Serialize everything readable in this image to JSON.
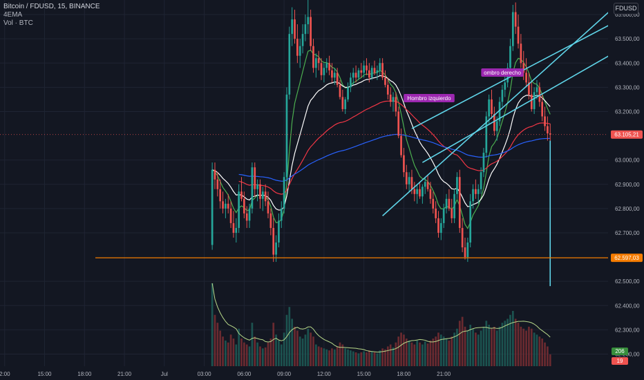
{
  "header": {
    "symbol_line": "Bitcoin / FDUSD, 15, BINANCE",
    "indicator_ema": "4EMA",
    "indicator_vol": "Vol · BTC"
  },
  "currency_badge": "FDUSD",
  "price_axis": {
    "ticks": [
      "63.600,00",
      "63.500,00",
      "63.400,00",
      "63.300,00",
      "63.200,00",
      "63.000,00",
      "62.900,00",
      "62.800,00",
      "62.700,00",
      "62.500,00",
      "62.400,00",
      "62.300,00",
      "62.200,00"
    ],
    "tick_values": [
      63600,
      63500,
      63400,
      63300,
      63200,
      63000,
      62900,
      62800,
      62700,
      62500,
      62400,
      62300,
      62200
    ],
    "last_price_label": "63.105,21",
    "last_price_value": 63105.21,
    "level_label": "62.597,03",
    "level_value": 62597.03,
    "vol_badge_1": "206",
    "vol_badge_2": "19"
  },
  "time_axis": {
    "labels": [
      "2:00",
      "15:00",
      "18:00",
      "21:00",
      "Jul",
      "03:00",
      "06:00",
      "09:00",
      "12:00",
      "15:00",
      "18:00",
      "21:00"
    ]
  },
  "annotations": {
    "left_shoulder": "Hombro izquierdo",
    "right_shoulder": "ombro derecho"
  },
  "colors": {
    "background": "#131722",
    "up": "#26a69a",
    "down": "#ef5350",
    "ema_fast": "#4caf50",
    "ema_mid": "#ffffff",
    "ema_slow": "#f23645",
    "ema_long": "#2962ff",
    "channel": "#5fd4e8",
    "level": "#f57c00",
    "annotation": "#9c27b0",
    "vol_ma": "#b8d98a"
  },
  "chart_data": {
    "type": "candlestick",
    "y_range": [
      62150,
      63660
    ],
    "x_range_hours": [
      -0.35,
      45.35
    ],
    "ohlc": [
      [
        15.6,
        62650,
        62990,
        62630,
        62960
      ],
      [
        15.8,
        62960,
        62990,
        62880,
        62920
      ],
      [
        16.0,
        62920,
        62950,
        62850,
        62880
      ],
      [
        16.2,
        62880,
        62920,
        62800,
        62830
      ],
      [
        16.4,
        62830,
        62870,
        62780,
        62800
      ],
      [
        16.6,
        62800,
        62840,
        62760,
        62820
      ],
      [
        16.8,
        62820,
        62860,
        62780,
        62800
      ],
      [
        17.0,
        62800,
        62830,
        62720,
        62740
      ],
      [
        17.2,
        62740,
        62790,
        62680,
        62700
      ],
      [
        17.4,
        62700,
        62760,
        62660,
        62720
      ],
      [
        17.6,
        62720,
        62900,
        62700,
        62870
      ],
      [
        17.8,
        62870,
        62930,
        62830,
        62840
      ],
      [
        18.0,
        62840,
        62870,
        62760,
        62780
      ],
      [
        18.2,
        62780,
        62810,
        62720,
        62750
      ],
      [
        18.4,
        62750,
        62820,
        62720,
        62800
      ],
      [
        18.6,
        62800,
        62990,
        62780,
        62970
      ],
      [
        18.8,
        62970,
        62990,
        62850,
        62880
      ],
      [
        19.0,
        62880,
        62920,
        62830,
        62900
      ],
      [
        19.2,
        62900,
        62920,
        62800,
        62840
      ],
      [
        19.4,
        62840,
        62890,
        62790,
        62870
      ],
      [
        19.6,
        62870,
        62900,
        62810,
        62830
      ],
      [
        19.8,
        62830,
        62870,
        62760,
        62780
      ],
      [
        20.0,
        62780,
        62800,
        62690,
        62720
      ],
      [
        20.2,
        62720,
        62760,
        62580,
        62610
      ],
      [
        20.4,
        62610,
        62690,
        62580,
        62660
      ],
      [
        20.6,
        62660,
        62780,
        62640,
        62750
      ],
      [
        20.8,
        62750,
        62830,
        62720,
        62800
      ],
      [
        21.0,
        62800,
        62950,
        62780,
        62930
      ],
      [
        21.2,
        62930,
        63300,
        62910,
        63270
      ],
      [
        21.4,
        63270,
        63550,
        63250,
        63520
      ],
      [
        21.6,
        63520,
        63630,
        63470,
        63580
      ],
      [
        21.8,
        63580,
        63620,
        63480,
        63500
      ],
      [
        22.0,
        63500,
        63560,
        63400,
        63430
      ],
      [
        22.2,
        63430,
        63500,
        63380,
        63470
      ],
      [
        22.4,
        63470,
        63560,
        63440,
        63520
      ],
      [
        22.6,
        63520,
        63600,
        63490,
        63560
      ],
      [
        22.8,
        63560,
        63660,
        63520,
        63590
      ],
      [
        23.0,
        63590,
        63620,
        63450,
        63470
      ],
      [
        23.2,
        63470,
        63500,
        63360,
        63380
      ],
      [
        23.4,
        63380,
        63440,
        63340,
        63420
      ],
      [
        23.6,
        63420,
        63450,
        63370,
        63400
      ],
      [
        23.8,
        63400,
        63420,
        63330,
        63350
      ],
      [
        24.0,
        63350,
        63400,
        63320,
        63380
      ],
      [
        24.2,
        63380,
        63420,
        63360,
        63400
      ],
      [
        24.4,
        63400,
        63430,
        63350,
        63370
      ],
      [
        24.6,
        63370,
        63400,
        63320,
        63340
      ],
      [
        24.8,
        63340,
        63380,
        63310,
        63360
      ],
      [
        25.0,
        63360,
        63380,
        63300,
        63310
      ],
      [
        25.2,
        63310,
        63330,
        63250,
        63260
      ],
      [
        25.4,
        63260,
        63290,
        63200,
        63210
      ],
      [
        25.6,
        63210,
        63260,
        63190,
        63250
      ],
      [
        25.8,
        63250,
        63320,
        63240,
        63300
      ],
      [
        26.0,
        63300,
        63360,
        63280,
        63340
      ],
      [
        26.2,
        63340,
        63380,
        63310,
        63360
      ],
      [
        26.4,
        63360,
        63390,
        63320,
        63340
      ],
      [
        26.6,
        63340,
        63380,
        63330,
        63370
      ],
      [
        26.8,
        63370,
        63400,
        63340,
        63360
      ],
      [
        27.0,
        63360,
        63410,
        63340,
        63390
      ],
      [
        27.2,
        63390,
        63420,
        63350,
        63370
      ],
      [
        27.4,
        63370,
        63400,
        63320,
        63340
      ],
      [
        27.6,
        63340,
        63390,
        63330,
        63380
      ],
      [
        27.8,
        63380,
        63410,
        63350,
        63360
      ],
      [
        28.0,
        63360,
        63390,
        63330,
        63370
      ],
      [
        28.2,
        63370,
        63420,
        63350,
        63400
      ],
      [
        28.4,
        63400,
        63420,
        63330,
        63340
      ],
      [
        28.6,
        63340,
        63370,
        63300,
        63310
      ],
      [
        28.8,
        63310,
        63340,
        63250,
        63270
      ],
      [
        29.0,
        63270,
        63300,
        63220,
        63240
      ],
      [
        29.2,
        63240,
        63280,
        63200,
        63260
      ],
      [
        29.4,
        63260,
        63280,
        63180,
        63200
      ],
      [
        29.6,
        63200,
        63220,
        63090,
        63100
      ],
      [
        29.8,
        63100,
        63130,
        63010,
        63020
      ],
      [
        30.0,
        63020,
        63050,
        62930,
        62950
      ],
      [
        30.2,
        62950,
        62980,
        62880,
        62900
      ],
      [
        30.4,
        62900,
        62950,
        62870,
        62930
      ],
      [
        30.6,
        62930,
        62960,
        62860,
        62880
      ],
      [
        30.8,
        62880,
        62910,
        62830,
        62860
      ],
      [
        31.0,
        62860,
        62900,
        62820,
        62880
      ],
      [
        31.2,
        62880,
        62910,
        62840,
        62850
      ],
      [
        31.4,
        62850,
        62900,
        62820,
        62890
      ],
      [
        31.6,
        62890,
        62930,
        62860,
        62910
      ],
      [
        31.8,
        62910,
        62940,
        62870,
        62880
      ],
      [
        32.0,
        62880,
        62910,
        62820,
        62840
      ],
      [
        32.2,
        62840,
        62870,
        62780,
        62800
      ],
      [
        32.4,
        62800,
        62830,
        62740,
        62760
      ],
      [
        32.6,
        62760,
        62790,
        62680,
        62700
      ],
      [
        32.8,
        62700,
        62760,
        62670,
        62740
      ],
      [
        33.0,
        62740,
        62820,
        62720,
        62800
      ],
      [
        33.2,
        62800,
        62860,
        62780,
        62840
      ],
      [
        33.4,
        62840,
        62880,
        62790,
        62800
      ],
      [
        33.6,
        62800,
        62840,
        62740,
        62760
      ],
      [
        33.8,
        62760,
        62880,
        62740,
        62860
      ],
      [
        34.0,
        62860,
        62950,
        62840,
        62930
      ],
      [
        34.2,
        62930,
        62960,
        62700,
        62720
      ],
      [
        34.4,
        62720,
        62760,
        62620,
        62640
      ],
      [
        34.6,
        62640,
        62680,
        62590,
        62600
      ],
      [
        34.8,
        62600,
        62680,
        62580,
        62660
      ],
      [
        35.0,
        62660,
        62860,
        62640,
        62830
      ],
      [
        35.2,
        62830,
        62900,
        62800,
        62880
      ],
      [
        35.4,
        62880,
        62920,
        62840,
        62860
      ],
      [
        35.6,
        62860,
        62900,
        62820,
        62880
      ],
      [
        35.8,
        62880,
        62970,
        62860,
        62950
      ],
      [
        36.0,
        62950,
        63050,
        62930,
        63030
      ],
      [
        36.2,
        63030,
        63200,
        63010,
        63180
      ],
      [
        36.4,
        63180,
        63270,
        63150,
        63250
      ],
      [
        36.6,
        63250,
        63290,
        63170,
        63190
      ],
      [
        36.8,
        63190,
        63220,
        63100,
        63120
      ],
      [
        37.0,
        63120,
        63180,
        63080,
        63160
      ],
      [
        37.2,
        63160,
        63260,
        63140,
        63240
      ],
      [
        37.4,
        63240,
        63310,
        63220,
        63290
      ],
      [
        37.6,
        63290,
        63350,
        63260,
        63320
      ],
      [
        37.8,
        63320,
        63400,
        63300,
        63380
      ],
      [
        38.0,
        63380,
        63500,
        63360,
        63470
      ],
      [
        38.2,
        63470,
        63640,
        63450,
        63610
      ],
      [
        38.4,
        63610,
        63650,
        63520,
        63550
      ],
      [
        38.6,
        63550,
        63600,
        63460,
        63480
      ],
      [
        38.8,
        63480,
        63520,
        63380,
        63400
      ],
      [
        39.0,
        63400,
        63450,
        63330,
        63360
      ],
      [
        39.2,
        63360,
        63420,
        63300,
        63320
      ],
      [
        39.4,
        63320,
        63360,
        63250,
        63270
      ],
      [
        39.6,
        63270,
        63320,
        63200,
        63210
      ],
      [
        39.8,
        63210,
        63300,
        63190,
        63280
      ],
      [
        40.0,
        63280,
        63330,
        63250,
        63300
      ],
      [
        40.2,
        63300,
        63320,
        63220,
        63240
      ],
      [
        40.4,
        63240,
        63270,
        63160,
        63180
      ],
      [
        40.6,
        63180,
        63220,
        63120,
        63140
      ],
      [
        40.8,
        63140,
        63180,
        63080,
        63110
      ],
      [
        41.0,
        63110,
        63150,
        63060,
        63105
      ]
    ],
    "volume": [
      [
        15.6,
        420
      ],
      [
        15.8,
        260
      ],
      [
        16.0,
        220
      ],
      [
        16.2,
        180
      ],
      [
        16.4,
        150
      ],
      [
        16.6,
        130
      ],
      [
        16.8,
        120
      ],
      [
        17.0,
        160
      ],
      [
        17.2,
        140
      ],
      [
        17.4,
        110
      ],
      [
        17.6,
        190
      ],
      [
        17.8,
        140
      ],
      [
        18.0,
        120
      ],
      [
        18.2,
        110
      ],
      [
        18.4,
        100
      ],
      [
        18.6,
        220
      ],
      [
        18.8,
        150
      ],
      [
        19.0,
        120
      ],
      [
        19.2,
        100
      ],
      [
        19.4,
        90
      ],
      [
        19.6,
        95
      ],
      [
        19.8,
        120
      ],
      [
        20.0,
        140
      ],
      [
        20.2,
        220
      ],
      [
        20.4,
        160
      ],
      [
        20.6,
        130
      ],
      [
        20.8,
        110
      ],
      [
        21.0,
        170
      ],
      [
        21.2,
        260
      ],
      [
        21.4,
        300
      ],
      [
        21.6,
        240
      ],
      [
        21.8,
        200
      ],
      [
        22.0,
        180
      ],
      [
        22.2,
        150
      ],
      [
        22.4,
        140
      ],
      [
        22.6,
        160
      ],
      [
        22.8,
        190
      ],
      [
        23.0,
        170
      ],
      [
        23.2,
        150
      ],
      [
        23.4,
        110
      ],
      [
        23.6,
        100
      ],
      [
        23.8,
        95
      ],
      [
        24.0,
        90
      ],
      [
        24.2,
        85
      ],
      [
        24.4,
        80
      ],
      [
        24.6,
        90
      ],
      [
        24.8,
        85
      ],
      [
        25.0,
        100
      ],
      [
        25.2,
        120
      ],
      [
        25.4,
        110
      ],
      [
        25.6,
        90
      ],
      [
        25.8,
        85
      ],
      [
        26.0,
        80
      ],
      [
        26.2,
        75
      ],
      [
        26.4,
        70
      ],
      [
        26.6,
        65
      ],
      [
        26.8,
        70
      ],
      [
        27.0,
        75
      ],
      [
        27.2,
        70
      ],
      [
        27.4,
        80
      ],
      [
        27.6,
        75
      ],
      [
        27.8,
        70
      ],
      [
        28.0,
        65
      ],
      [
        28.2,
        80
      ],
      [
        28.4,
        90
      ],
      [
        28.6,
        85
      ],
      [
        28.8,
        100
      ],
      [
        29.0,
        110
      ],
      [
        29.2,
        95
      ],
      [
        29.4,
        120
      ],
      [
        29.6,
        150
      ],
      [
        29.8,
        170
      ],
      [
        30.0,
        160
      ],
      [
        30.2,
        140
      ],
      [
        30.4,
        130
      ],
      [
        30.6,
        120
      ],
      [
        30.8,
        110
      ],
      [
        31.0,
        130
      ],
      [
        31.2,
        120
      ],
      [
        31.4,
        110
      ],
      [
        31.6,
        125
      ],
      [
        31.8,
        115
      ],
      [
        32.0,
        130
      ],
      [
        32.2,
        140
      ],
      [
        32.4,
        150
      ],
      [
        32.6,
        170
      ],
      [
        32.8,
        160
      ],
      [
        33.0,
        150
      ],
      [
        33.2,
        140
      ],
      [
        33.4,
        130
      ],
      [
        33.6,
        150
      ],
      [
        33.8,
        170
      ],
      [
        34.0,
        190
      ],
      [
        34.2,
        230
      ],
      [
        34.4,
        250
      ],
      [
        34.6,
        200
      ],
      [
        34.8,
        180
      ],
      [
        35.0,
        210
      ],
      [
        35.2,
        190
      ],
      [
        35.4,
        170
      ],
      [
        35.6,
        160
      ],
      [
        35.8,
        180
      ],
      [
        36.0,
        200
      ],
      [
        36.2,
        230
      ],
      [
        36.4,
        210
      ],
      [
        36.6,
        190
      ],
      [
        36.8,
        200
      ],
      [
        37.0,
        180
      ],
      [
        37.2,
        200
      ],
      [
        37.4,
        220
      ],
      [
        37.6,
        230
      ],
      [
        37.8,
        240
      ],
      [
        38.0,
        260
      ],
      [
        38.2,
        280
      ],
      [
        38.4,
        240
      ],
      [
        38.6,
        220
      ],
      [
        38.8,
        200
      ],
      [
        39.0,
        190
      ],
      [
        39.2,
        180
      ],
      [
        39.4,
        200
      ],
      [
        39.6,
        190
      ],
      [
        39.8,
        170
      ],
      [
        40.0,
        160
      ],
      [
        40.2,
        150
      ],
      [
        40.4,
        140
      ],
      [
        40.6,
        120
      ],
      [
        40.8,
        100
      ],
      [
        41.0,
        60
      ]
    ],
    "channel_lines": [
      [
        [
          28.4,
          62770
        ],
        [
          45.8,
          63630
        ]
      ],
      [
        [
          31.4,
          62990
        ],
        [
          47.0,
          63480
        ]
      ],
      [
        [
          30.6,
          63130
        ],
        [
          46.6,
          63590
        ]
      ]
    ],
    "neckline_segment": [
      [
        41.0,
        63080
      ],
      [
        41.0,
        62480
      ]
    ]
  }
}
